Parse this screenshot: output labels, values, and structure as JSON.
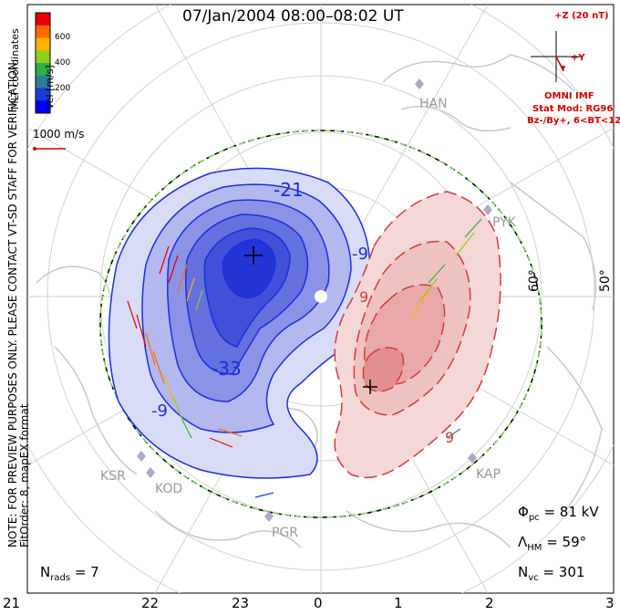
{
  "title": "07/Jan/2004 08:00–08:02 UT",
  "side_note_line1": "NOTE: FOR PREVIEW PURPOSES ONLY. PLEASE CONTACT VT-SD STAFF FOR VERIFICATION.",
  "side_note_line2": "FitOrder: 8, mapEX format",
  "colorbar": {
    "label": "Vel [m/s]",
    "coord_label": "MLT coordinates",
    "ticks": [
      "600",
      "400",
      "200"
    ],
    "colors": [
      "#e60000",
      "#ff6a00",
      "#ffb300",
      "#8fd11a",
      "#2fae4a",
      "#2b7d9b",
      "#1a3fd6",
      "#0000ff"
    ]
  },
  "reference_vector": "1000 m/s",
  "imf": {
    "z_label": "+Z (20 nT)",
    "y_label": "+Y",
    "source": "OMNI IMF",
    "model_line1": "Stat Mod: RG96",
    "model_line2": "Bz-/By+, 6<BT<12"
  },
  "stats": {
    "phi_pc_symbol": "Φ",
    "phi_pc_sub": "pc",
    "phi_pc_value": "= 81 kV",
    "lambda_symbol": "Λ",
    "lambda_sub": "HM",
    "lambda_value": "= 59°",
    "nvc_symbol": "N",
    "nvc_sub": "vc",
    "nvc_value": "= 301",
    "nrads_symbol": "N",
    "nrads_sub": "rads",
    "nrads_value": "= 7"
  },
  "mlt_ticks": [
    "21",
    "22",
    "23",
    "0",
    "1",
    "2",
    "3"
  ],
  "latitude_labels": [
    "60°",
    "50°"
  ],
  "stations": [
    "HAN",
    "PYK",
    "KAP",
    "PGR",
    "KOD",
    "KSR"
  ],
  "contour_labels": [
    "-21",
    "-33",
    "-9",
    "9",
    "-9",
    "9"
  ],
  "colors": {
    "negative_potential": "#1a2fe0",
    "positive_potential": "#d63a3a",
    "boundary_dash": "#7ed957",
    "station_gray": "#9a9a9a",
    "imf_red": "#d10000"
  }
}
